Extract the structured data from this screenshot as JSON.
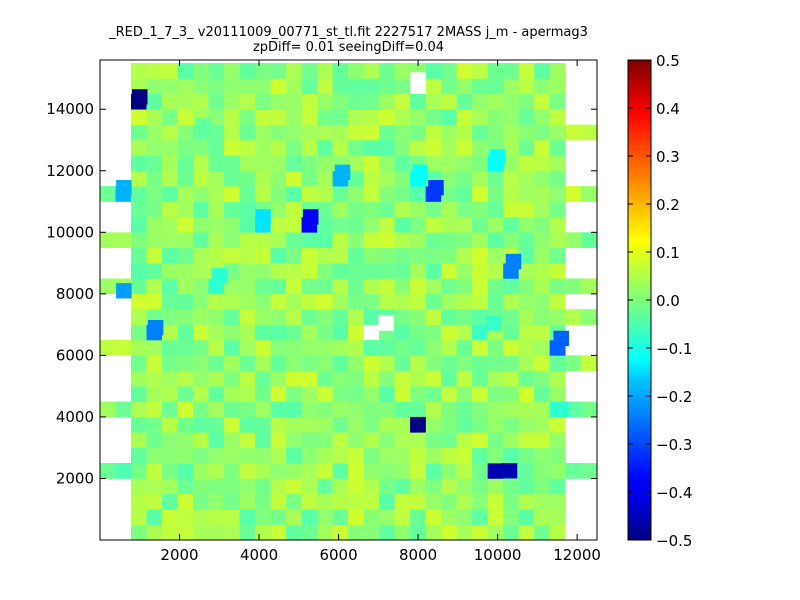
{
  "chart_data": {
    "type": "heatmap",
    "title_line1": "_RED_1_7_3_ v20111009_00771_st_tl.fit 2227517 2MASS j_m - apermag3",
    "title_line2": "zpDiff= 0.01 seeingDiff=0.04",
    "xlabel": "",
    "ylabel": "",
    "xlim": [
      0,
      12500
    ],
    "ylim": [
      0,
      15600
    ],
    "xticks": [
      2000,
      4000,
      6000,
      8000,
      10000,
      12000
    ],
    "yticks": [
      2000,
      4000,
      6000,
      8000,
      10000,
      12000,
      14000
    ],
    "colorbar": {
      "colormap": "jet",
      "min": -0.5,
      "max": 0.5,
      "ticks": [
        -0.5,
        -0.4,
        -0.3,
        -0.2,
        -0.1,
        0.0,
        0.1,
        0.2,
        0.3,
        0.4,
        0.5
      ],
      "tick_labels": [
        "−0.5",
        "−0.4",
        "−0.3",
        "−0.2",
        "−0.1",
        "0.0",
        "0.1",
        "0.2",
        "0.3",
        "0.4",
        "0.5"
      ]
    },
    "grid": false,
    "cell_size": [
      390,
      500
    ],
    "columns_x_centers": [
      195,
      585,
      975,
      1365,
      1755,
      2145,
      2535,
      2925,
      3315,
      3705,
      4095,
      4485,
      4875,
      5265,
      5655,
      6045,
      6435,
      6825,
      7215,
      7605,
      7995,
      8385,
      8775,
      9165,
      9555,
      9945,
      10335,
      10725,
      11115,
      11505,
      11895,
      12285
    ],
    "rows_y_centers": [
      250,
      750,
      1250,
      1750,
      2250,
      2750,
      3250,
      3750,
      4250,
      4750,
      5250,
      5750,
      6250,
      6750,
      7250,
      7750,
      8250,
      8750,
      9250,
      9750,
      10250,
      10750,
      11250,
      11750,
      12250,
      12750,
      13250,
      13750,
      14250,
      14750,
      15250
    ],
    "notable_cells": [
      {
        "x": 1000,
        "y": 14400,
        "value": -0.5
      },
      {
        "x": 1400,
        "y": 6900,
        "value": -0.25
      },
      {
        "x": 600,
        "y": 11450,
        "value": -0.2
      },
      {
        "x": 600,
        "y": 8100,
        "value": -0.22
      },
      {
        "x": 6100,
        "y": 11950,
        "value": -0.2
      },
      {
        "x": 8450,
        "y": 11450,
        "value": -0.32
      },
      {
        "x": 5300,
        "y": 10500,
        "value": -0.38
      },
      {
        "x": 4100,
        "y": 10500,
        "value": -0.15
      },
      {
        "x": 8050,
        "y": 11950,
        "value": -0.12
      },
      {
        "x": 10000,
        "y": 12450,
        "value": -0.12
      },
      {
        "x": 10400,
        "y": 9050,
        "value": -0.25
      },
      {
        "x": 11600,
        "y": 6550,
        "value": -0.28
      },
      {
        "x": 8000,
        "y": 3750,
        "value": -0.5
      },
      {
        "x": 10300,
        "y": 2250,
        "value": -0.45
      },
      {
        "x": 3000,
        "y": 8600,
        "value": -0.08
      },
      {
        "x": 9900,
        "y": 7050,
        "value": -0.07
      },
      {
        "x": 11600,
        "y": 4250,
        "value": -0.08
      },
      {
        "x": 600,
        "y": 2250,
        "value": -0.05
      },
      {
        "x": 2600,
        "y": 13450,
        "value": -0.03
      }
    ],
    "missing_cells": [
      {
        "x": 8000,
        "y": 14950
      },
      {
        "x": 7200,
        "y": 7050
      }
    ]
  }
}
